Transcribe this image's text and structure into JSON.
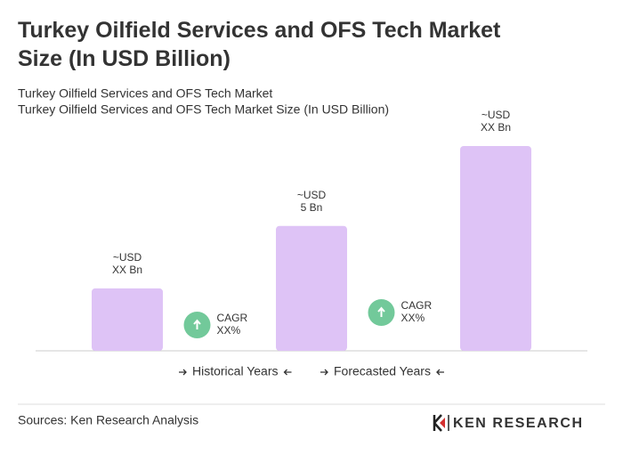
{
  "chart_data": {
    "type": "bar",
    "title": "Turkey Oilfield Services and OFS Tech Market Size (In USD Billion)",
    "subtitle": [
      "Turkey Oilfield Services and OFS Tech Market",
      "Turkey Oilfield Services and OFS Tech Market Size (In USD Billion)"
    ],
    "categories": [
      null,
      null,
      null
    ],
    "values": [
      2.5,
      5,
      8.2
    ],
    "value_labels": [
      "~USD\nXX Bn",
      "~USD\n5 Bn",
      "~USD\nXX Bn"
    ],
    "color": "#dec3f6",
    "annotations": [
      "CAGR\nXX%",
      "CAGR\nXX%"
    ],
    "periods": [
      "Historical Years",
      "Forecasted Years"
    ],
    "source": "Sources: Ken Research Analysis",
    "brand": "KEN RESEARCH"
  }
}
